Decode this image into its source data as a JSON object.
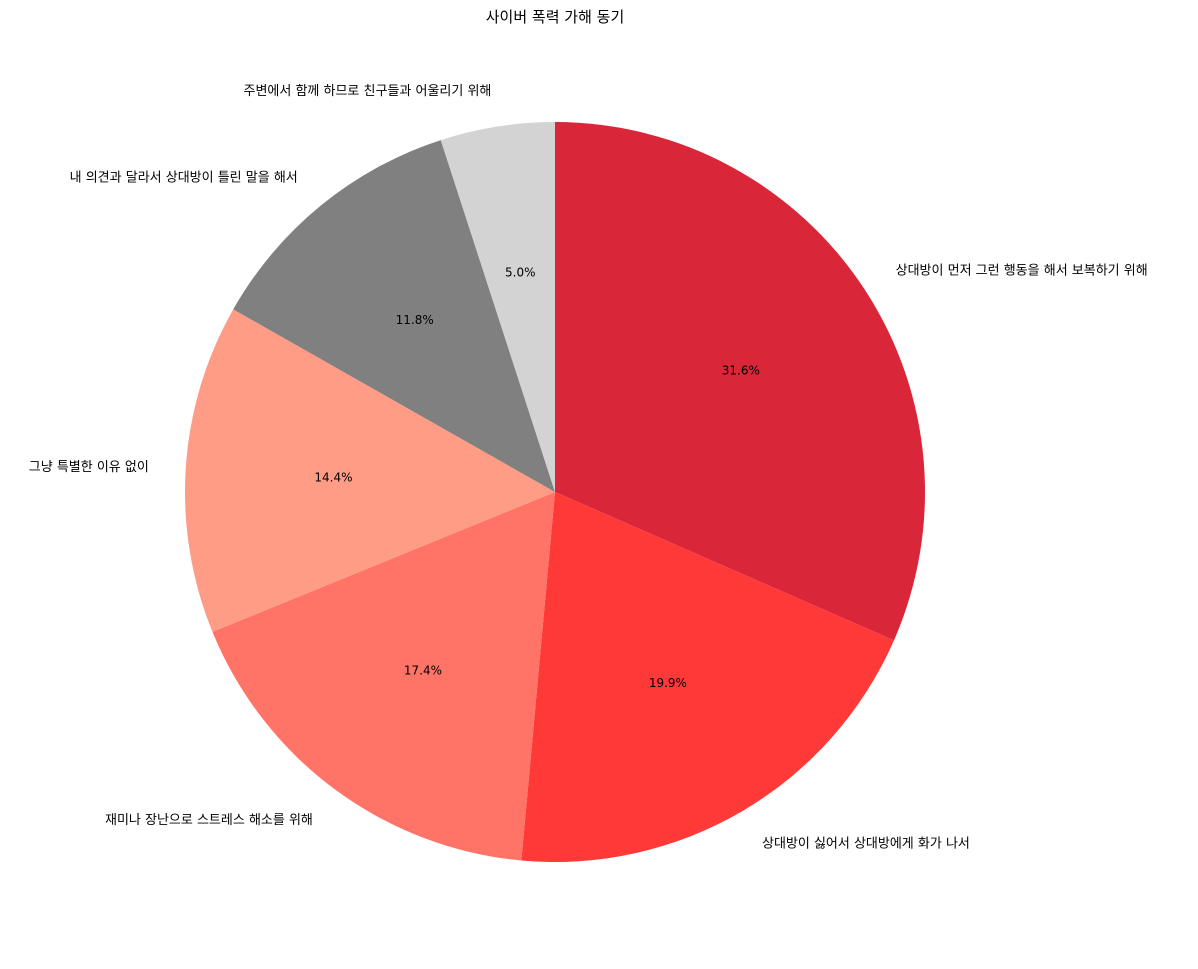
{
  "chart_data": {
    "type": "pie",
    "title": "사이버 폭력 가해 동기",
    "categories": [
      "상대방이 먼저 그런 행동을 해서 보복하기 위해",
      "상대방이 싫어서 상대방에게 화가 나서",
      "재미나 장난으로 스트레스 해소를 위해",
      "그냥 특별한 이유 없이",
      "내 의견과 달라서 상대방이 틀린 말을 해서",
      "주변에서 함께 하므로 친구들과 어울리기 위해"
    ],
    "values": [
      31.6,
      19.9,
      17.4,
      14.4,
      11.8,
      5.0
    ],
    "percent_labels": [
      "31.6%",
      "19.9%",
      "17.4%",
      "14.4%",
      "11.8%",
      "5.0%"
    ],
    "colors": [
      "#d92638",
      "#ff3838",
      "#ff7466",
      "#ff9c86",
      "#808080",
      "#d3d3d3"
    ],
    "start_angle": "top (12 o'clock)",
    "direction": "clockwise",
    "legend": "none"
  }
}
